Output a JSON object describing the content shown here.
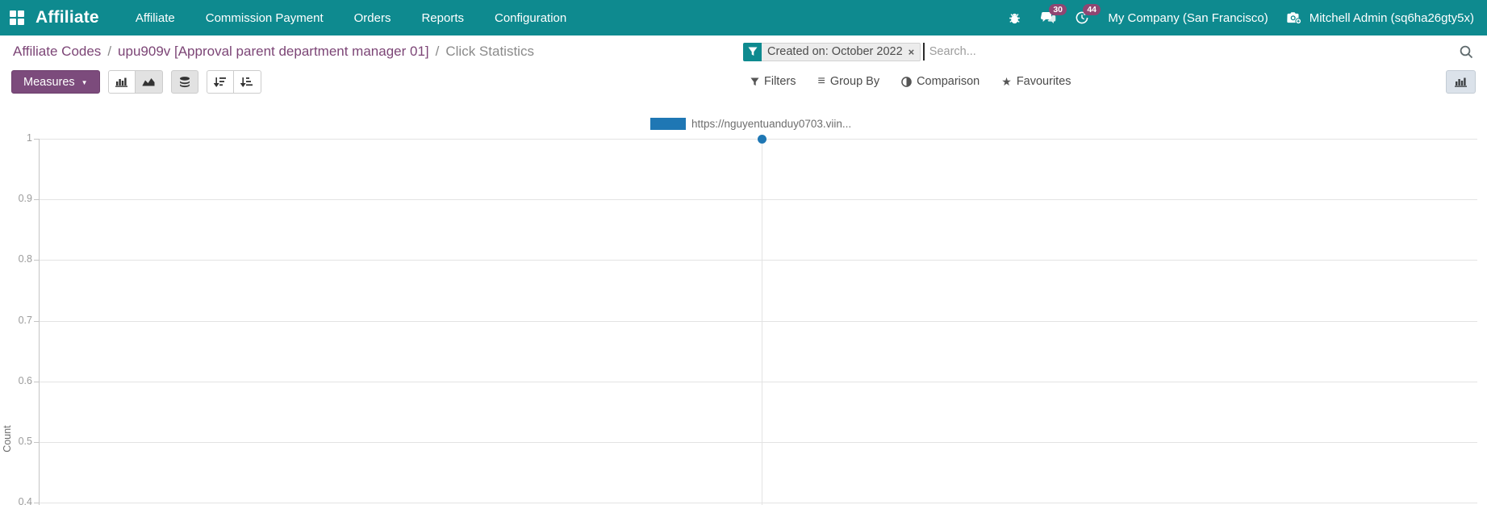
{
  "navbar": {
    "brand": "Affiliate",
    "menu": [
      {
        "label": "Affiliate"
      },
      {
        "label": "Commission Payment"
      },
      {
        "label": "Orders"
      },
      {
        "label": "Reports"
      },
      {
        "label": "Configuration"
      }
    ],
    "messages_badge": "30",
    "activities_badge": "44",
    "company": "My Company (San Francisco)",
    "user": "Mitchell Admin (sq6ha26gty5x)"
  },
  "breadcrumb": {
    "separator": "/",
    "items": [
      {
        "label": "Affiliate Codes"
      },
      {
        "label": "upu909v [Approval parent department manager 01]"
      },
      {
        "label": "Click Statistics"
      }
    ]
  },
  "search": {
    "facet_label": "Created on: October 2022",
    "facet_remove": "×",
    "placeholder": "Search..."
  },
  "toolbar": {
    "measures_label": "Measures",
    "measures_caret": "▼",
    "filters_label": "Filters",
    "group_by_label": "Group By",
    "group_by_glyph": "≡",
    "comparison_label": "Comparison",
    "favourites_label": "Favourites",
    "favourites_glyph": "★"
  },
  "colors": {
    "navbar_teal": "#0e8a8f",
    "accent_purple": "#7c4b7c",
    "breadcrumb_purple": "#7c4576",
    "badge_magenta": "#8f4672",
    "series_blue": "#1f77b4"
  },
  "chart_data": {
    "type": "line",
    "title": "",
    "xlabel": "",
    "ylabel": "Count",
    "legend_position": "top",
    "grid": true,
    "categories": [
      ""
    ],
    "series": [
      {
        "name": "https://nguyentuanduy0703.viin...",
        "values": [
          1
        ],
        "color": "#1f77b4"
      }
    ],
    "y_axis": {
      "ticks": [
        "1",
        "0.9",
        "0.8",
        "0.7",
        "0.6",
        "0.5",
        "0.4"
      ],
      "visible_range": [
        0.4,
        1
      ]
    }
  }
}
